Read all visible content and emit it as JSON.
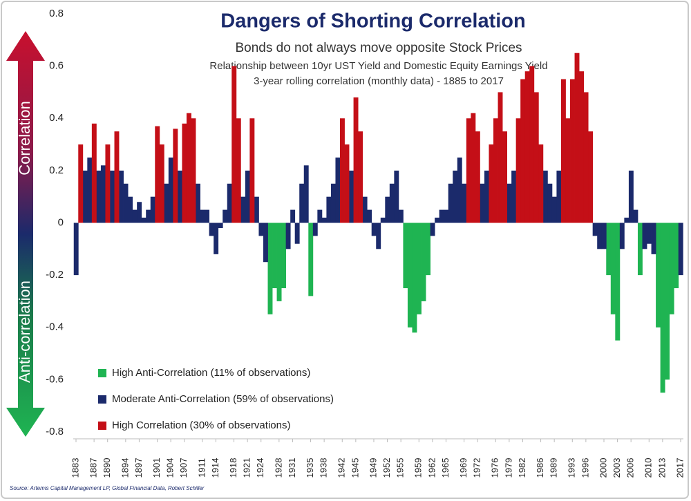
{
  "chart_data": {
    "type": "bar",
    "title": "Dangers of Shorting Correlation",
    "subtitle": "Bonds do not always move opposite Stock Prices",
    "description": [
      "Relationship between 10yr UST Yield and Domestic Equity Earnings Yield",
      "3-year rolling correlation (monthly data) - 1885 to 2017"
    ],
    "side_labels": {
      "top": "Correlation",
      "bottom": "Anti-correlation"
    },
    "source": "Source: Artemis Capital Management LP, Global Financial Data, Robert Schiller",
    "x": [
      1883,
      1884,
      1885,
      1886,
      1887,
      1888,
      1889,
      1890,
      1891,
      1892,
      1893,
      1894,
      1895,
      1896,
      1897,
      1898,
      1899,
      1900,
      1901,
      1902,
      1903,
      1904,
      1905,
      1906,
      1907,
      1908,
      1909,
      1910,
      1911,
      1912,
      1913,
      1914,
      1915,
      1916,
      1917,
      1918,
      1919,
      1920,
      1921,
      1922,
      1923,
      1924,
      1925,
      1926,
      1927,
      1928,
      1929,
      1930,
      1931,
      1932,
      1933,
      1934,
      1935,
      1936,
      1937,
      1938,
      1939,
      1940,
      1941,
      1942,
      1943,
      1944,
      1945,
      1946,
      1947,
      1948,
      1949,
      1950,
      1951,
      1952,
      1953,
      1954,
      1955,
      1956,
      1957,
      1958,
      1959,
      1960,
      1961,
      1962,
      1963,
      1964,
      1965,
      1966,
      1967,
      1968,
      1969,
      1970,
      1971,
      1972,
      1973,
      1974,
      1975,
      1976,
      1977,
      1978,
      1979,
      1980,
      1981,
      1982,
      1983,
      1984,
      1985,
      1986,
      1987,
      1988,
      1989,
      1990,
      1991,
      1992,
      1993,
      1994,
      1995,
      1996,
      1997,
      1998,
      1999,
      2000,
      2001,
      2002,
      2003,
      2004,
      2005,
      2006,
      2007,
      2008,
      2009,
      2010,
      2011,
      2012,
      2013,
      2014,
      2015,
      2016,
      2017
    ],
    "series": [
      {
        "name": "High Anti-Correlation (11% of observations)",
        "color": "#1fb452",
        "values": [
          null,
          null,
          null,
          null,
          null,
          null,
          null,
          null,
          null,
          null,
          null,
          null,
          null,
          null,
          null,
          null,
          null,
          null,
          null,
          null,
          null,
          null,
          null,
          null,
          null,
          null,
          null,
          null,
          null,
          null,
          null,
          null,
          null,
          null,
          null,
          null,
          null,
          null,
          null,
          null,
          null,
          null,
          null,
          -0.35,
          -0.25,
          -0.3,
          -0.25,
          null,
          null,
          null,
          null,
          null,
          -0.28,
          null,
          null,
          null,
          null,
          null,
          null,
          null,
          null,
          null,
          null,
          null,
          null,
          null,
          null,
          null,
          null,
          null,
          null,
          null,
          null,
          -0.25,
          -0.4,
          -0.42,
          -0.35,
          -0.3,
          -0.2,
          null,
          null,
          null,
          null,
          null,
          null,
          null,
          null,
          null,
          null,
          null,
          null,
          null,
          null,
          null,
          null,
          null,
          null,
          null,
          null,
          null,
          null,
          null,
          null,
          null,
          null,
          null,
          null,
          null,
          null,
          null,
          null,
          null,
          null,
          null,
          null,
          null,
          null,
          null,
          -0.2,
          -0.35,
          -0.45,
          null,
          null,
          null,
          null,
          -0.2,
          null,
          null,
          null,
          -0.4,
          -0.65,
          -0.6,
          -0.35,
          -0.25,
          null
        ]
      },
      {
        "name": "Moderate Anti-Correlation (59% of observations)",
        "color": "#1b2a6b",
        "values": [
          -0.2,
          null,
          0.2,
          0.25,
          null,
          0.2,
          0.22,
          null,
          0.2,
          null,
          0.2,
          0.15,
          0.1,
          0.05,
          0.08,
          0.02,
          0.05,
          0.1,
          null,
          null,
          0.15,
          0.25,
          null,
          0.2,
          null,
          null,
          null,
          0.15,
          0.05,
          0.05,
          -0.05,
          -0.12,
          -0.02,
          0.05,
          0.15,
          null,
          null,
          0.1,
          0.2,
          null,
          0.1,
          -0.05,
          -0.15,
          null,
          null,
          null,
          null,
          -0.1,
          0.05,
          -0.08,
          0.15,
          0.22,
          null,
          -0.05,
          0.05,
          0.02,
          0.1,
          0.15,
          0.25,
          null,
          null,
          0.2,
          null,
          null,
          0.1,
          0.05,
          -0.05,
          -0.1,
          0.02,
          0.1,
          0.15,
          0.2,
          0.05,
          null,
          null,
          null,
          null,
          null,
          null,
          -0.05,
          0.02,
          0.05,
          0.05,
          0.15,
          0.2,
          0.25,
          0.15,
          null,
          null,
          null,
          0.15,
          0.2,
          null,
          null,
          null,
          null,
          0.15,
          0.2,
          null,
          null,
          null,
          null,
          null,
          null,
          0.2,
          0.15,
          0.1,
          0.2,
          null,
          null,
          null,
          null,
          null,
          null,
          null,
          -0.05,
          -0.1,
          -0.1,
          null,
          null,
          null,
          -0.1,
          0.02,
          0.2,
          0.05,
          null,
          -0.1,
          -0.08,
          -0.12,
          null,
          null,
          null,
          null,
          null,
          -0.2
        ]
      },
      {
        "name": "High Correlation (30% of observations)",
        "color": "#c40f17",
        "values": [
          null,
          0.3,
          null,
          null,
          0.38,
          null,
          null,
          0.3,
          null,
          0.35,
          null,
          null,
          null,
          null,
          null,
          null,
          null,
          null,
          0.37,
          0.3,
          null,
          null,
          0.36,
          null,
          0.38,
          0.42,
          0.4,
          null,
          null,
          null,
          null,
          null,
          null,
          null,
          null,
          0.6,
          0.4,
          null,
          null,
          0.4,
          null,
          null,
          null,
          null,
          null,
          null,
          null,
          null,
          null,
          null,
          null,
          null,
          null,
          null,
          null,
          null,
          null,
          null,
          null,
          0.4,
          0.3,
          null,
          0.48,
          0.35,
          null,
          null,
          null,
          null,
          null,
          null,
          null,
          null,
          null,
          null,
          null,
          null,
          null,
          null,
          null,
          null,
          null,
          null,
          null,
          null,
          null,
          null,
          null,
          0.4,
          0.42,
          0.35,
          null,
          null,
          0.3,
          0.4,
          0.5,
          0.35,
          null,
          null,
          0.4,
          0.55,
          0.58,
          0.6,
          0.5,
          0.3,
          null,
          null,
          null,
          null,
          0.55,
          0.4,
          0.55,
          0.65,
          0.58,
          0.5,
          0.35,
          null,
          null,
          null,
          null,
          null,
          null,
          null,
          null,
          null,
          null,
          null,
          null,
          null,
          null,
          null,
          null,
          null,
          null,
          null,
          null
        ]
      }
    ],
    "xlim": [
      1883,
      2017
    ],
    "xticks": [
      1883,
      1887,
      1890,
      1894,
      1897,
      1901,
      1904,
      1907,
      1911,
      1914,
      1918,
      1921,
      1924,
      1928,
      1931,
      1935,
      1938,
      1942,
      1945,
      1949,
      1952,
      1955,
      1959,
      1962,
      1965,
      1969,
      1972,
      1976,
      1979,
      1982,
      1986,
      1989,
      1993,
      1996,
      2000,
      2003,
      2006,
      2010,
      2013,
      2017
    ],
    "ylim": [
      -0.8,
      0.8
    ],
    "yticks": [
      0.8,
      0.6,
      0.4,
      0.2,
      0,
      -0.2,
      -0.4,
      -0.6,
      -0.8
    ],
    "grid": false,
    "legend": "lower left"
  }
}
